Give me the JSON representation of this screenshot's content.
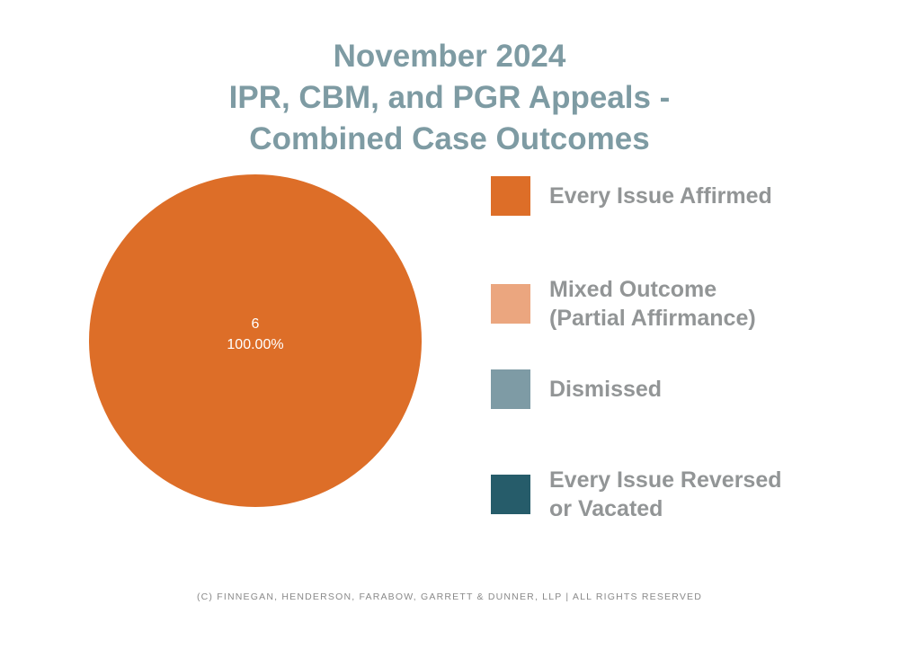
{
  "chart_data": {
    "type": "pie",
    "title": [
      "November 2024",
      "IPR, CBM, and PGR Appeals -",
      "Combined Case Outcomes"
    ],
    "categories": [
      "Every Issue Affirmed",
      "Mixed Outcome\n(Partial Affirmance)",
      "Dismissed",
      "Every Issue Reversed\nor Vacated"
    ],
    "values": [
      6,
      0,
      0,
      0
    ],
    "colors": [
      "#dd6e28",
      "#eba67f",
      "#7e9ba5",
      "#265c6a"
    ],
    "data_labels": [
      {
        "count": "6",
        "percent": "100.00%"
      }
    ],
    "legend_position": "right"
  },
  "footer": "(c) Finnegan, Henderson, Farabow, Garrett & Dunner, LLP | All Rights Reserved"
}
